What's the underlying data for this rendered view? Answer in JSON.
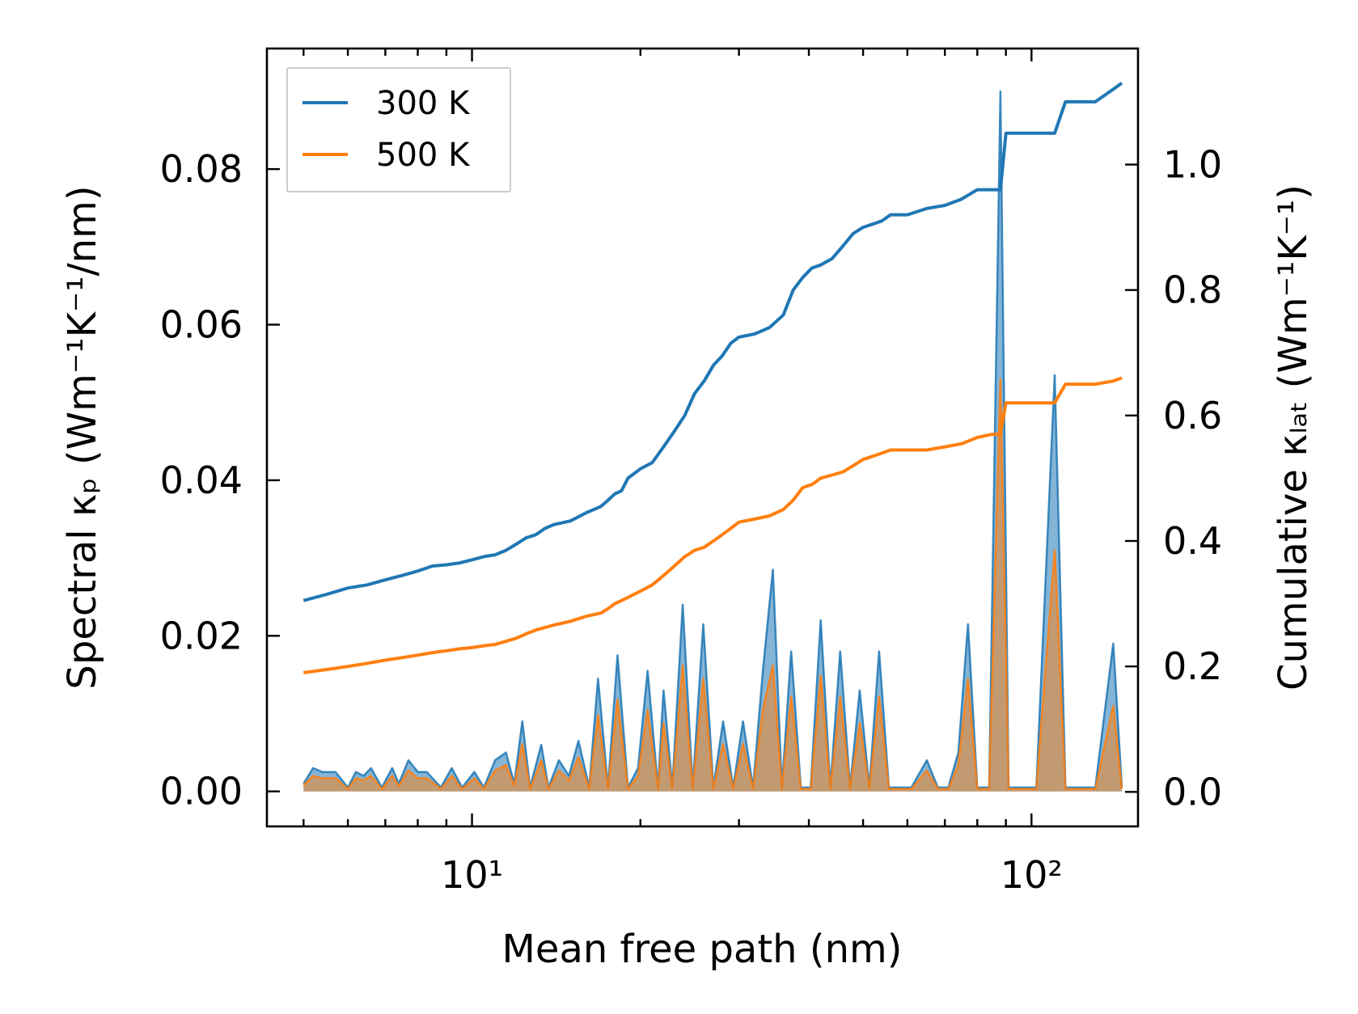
{
  "chart_data": {
    "type": "line",
    "xlabel": "Mean free path (nm)",
    "ylabel_left": "Spectral κₚ (Wm⁻¹K⁻¹/nm)",
    "ylabel_right": "Cumulative κₗₐₜ (Wm⁻¹K⁻¹)",
    "xscale": "log",
    "xlim": [
      4.3,
      155
    ],
    "ylim_left": [
      -0.0045,
      0.0955
    ],
    "ylim_right": [
      -0.055,
      1.185
    ],
    "x_ticks": [
      {
        "value": 10,
        "label": "10¹"
      },
      {
        "value": 100,
        "label": "10²"
      }
    ],
    "y_ticks_left": [
      {
        "value": 0.0,
        "label": "0.00"
      },
      {
        "value": 0.02,
        "label": "0.02"
      },
      {
        "value": 0.04,
        "label": "0.04"
      },
      {
        "value": 0.06,
        "label": "0.06"
      },
      {
        "value": 0.08,
        "label": "0.08"
      }
    ],
    "y_ticks_right": [
      {
        "value": 0.0,
        "label": "0.0"
      },
      {
        "value": 0.2,
        "label": "0.2"
      },
      {
        "value": 0.4,
        "label": "0.4"
      },
      {
        "value": 0.6,
        "label": "0.6"
      },
      {
        "value": 0.8,
        "label": "0.8"
      },
      {
        "value": 1.0,
        "label": "1.0"
      }
    ],
    "legend": {
      "position": "top-left",
      "entries": [
        "300 K",
        "500 K"
      ]
    },
    "colors": {
      "300K": "#1f77b4",
      "500K": "#ff7f0e"
    },
    "spectral": {
      "x": [
        5.0,
        5.2,
        5.4,
        5.7,
        6.0,
        6.2,
        6.4,
        6.6,
        6.9,
        7.2,
        7.4,
        7.7,
        8.0,
        8.3,
        8.8,
        9.2,
        9.6,
        10.1,
        10.5,
        11.0,
        11.5,
        11.9,
        12.3,
        12.7,
        13.3,
        13.7,
        14.3,
        14.9,
        15.5,
        16.2,
        16.8,
        17.5,
        18.2,
        19.0,
        19.8,
        20.6,
        21.5,
        22.0,
        22.8,
        23.8,
        24.8,
        25.9,
        27.0,
        28.1,
        29.3,
        30.5,
        31.8,
        33.1,
        34.5,
        35.8,
        37.2,
        38.7,
        40.3,
        42.0,
        43.7,
        45.5,
        47.4,
        49.3,
        51.3,
        53.4,
        55.6,
        57.8,
        61.0,
        65.0,
        68.0,
        71.0,
        74.0,
        77.0,
        80.0,
        84.0,
        88.0,
        91.0,
        93.0,
        97.0,
        102.0,
        110.0,
        115.0,
        118.0,
        122.0,
        130.0,
        140.0,
        145.0
      ],
      "series": [
        {
          "name": "300 K",
          "values": [
            0.001,
            0.003,
            0.0025,
            0.0025,
            0.0005,
            0.0025,
            0.002,
            0.003,
            0.0005,
            0.003,
            0.001,
            0.004,
            0.0025,
            0.0025,
            0.0005,
            0.003,
            0.0005,
            0.0025,
            0.0005,
            0.004,
            0.005,
            0.001,
            0.009,
            0.0005,
            0.006,
            0.0005,
            0.004,
            0.002,
            0.0065,
            0.0005,
            0.0145,
            0.0005,
            0.0175,
            0.0005,
            0.003,
            0.0155,
            0.0005,
            0.013,
            0.0005,
            0.024,
            0.0005,
            0.0215,
            0.0005,
            0.009,
            0.0005,
            0.009,
            0.0005,
            0.0155,
            0.0285,
            0.0005,
            0.018,
            0.0005,
            0.0005,
            0.022,
            0.0005,
            0.018,
            0.0005,
            0.013,
            0.0005,
            0.018,
            0.0005,
            0.0005,
            0.0005,
            0.004,
            0.0005,
            0.0005,
            0.005,
            0.0215,
            0.0005,
            0.0005,
            0.09,
            0.0005,
            0.0005,
            0.0005,
            0.0005,
            0.0535,
            0.0005,
            0.0005,
            0.0005,
            0.0005,
            0.019,
            0.0005
          ]
        },
        {
          "name": "500 K",
          "values": [
            0.0008,
            0.002,
            0.0017,
            0.0017,
            0.0003,
            0.0017,
            0.0014,
            0.002,
            0.0003,
            0.002,
            0.0007,
            0.0027,
            0.0017,
            0.0017,
            0.0003,
            0.002,
            0.0003,
            0.0017,
            0.0003,
            0.0027,
            0.0034,
            0.0007,
            0.0061,
            0.0003,
            0.004,
            0.0003,
            0.0027,
            0.0014,
            0.0044,
            0.0003,
            0.0098,
            0.0003,
            0.0118,
            0.0003,
            0.002,
            0.0105,
            0.0003,
            0.0088,
            0.0003,
            0.0162,
            0.0003,
            0.0145,
            0.0003,
            0.0061,
            0.0003,
            0.0061,
            0.0003,
            0.0105,
            0.0162,
            0.0003,
            0.0122,
            0.0003,
            0.0003,
            0.0149,
            0.0003,
            0.0122,
            0.0003,
            0.0088,
            0.0003,
            0.0122,
            0.0003,
            0.0003,
            0.0003,
            0.0027,
            0.0003,
            0.0003,
            0.0034,
            0.0145,
            0.0003,
            0.0003,
            0.053,
            0.0003,
            0.0003,
            0.0003,
            0.0003,
            0.031,
            0.0003,
            0.0003,
            0.0003,
            0.0003,
            0.011,
            0.0003
          ]
        }
      ]
    },
    "cumulative": {
      "x": [
        5.0,
        5.5,
        6.0,
        6.5,
        7.0,
        7.5,
        8.0,
        8.5,
        9.0,
        9.5,
        10.0,
        10.5,
        11.0,
        11.5,
        12.0,
        12.5,
        13.0,
        13.5,
        14.0,
        15.0,
        16.0,
        17.0,
        17.5,
        18.0,
        18.5,
        19.0,
        20.0,
        21.0,
        22.0,
        23.0,
        24.0,
        25.0,
        26.0,
        27.0,
        28.0,
        29.0,
        30.0,
        32.0,
        34.0,
        36.0,
        37.5,
        39.0,
        40.5,
        42.0,
        44.0,
        46.0,
        48.0,
        50.0,
        52.0,
        54.0,
        56.0,
        60.0,
        65.0,
        70.0,
        75.0,
        80.0,
        85.0,
        88.0,
        90.0,
        92.0,
        95.0,
        100.0,
        110.0,
        115.0,
        118.0,
        120.0,
        130.0,
        140.0,
        145.0
      ],
      "series": [
        {
          "name": "300 K",
          "values": [
            0.305,
            0.315,
            0.325,
            0.33,
            0.338,
            0.345,
            0.352,
            0.36,
            0.362,
            0.365,
            0.37,
            0.375,
            0.378,
            0.385,
            0.395,
            0.405,
            0.41,
            0.42,
            0.426,
            0.432,
            0.445,
            0.455,
            0.465,
            0.475,
            0.48,
            0.5,
            0.515,
            0.525,
            0.55,
            0.575,
            0.6,
            0.635,
            0.655,
            0.68,
            0.695,
            0.715,
            0.725,
            0.73,
            0.74,
            0.76,
            0.8,
            0.82,
            0.835,
            0.84,
            0.85,
            0.87,
            0.89,
            0.9,
            0.905,
            0.91,
            0.92,
            0.92,
            0.93,
            0.935,
            0.945,
            0.96,
            0.96,
            0.96,
            1.05,
            1.05,
            1.05,
            1.05,
            1.05,
            1.1,
            1.1,
            1.1,
            1.1,
            1.12,
            1.13
          ]
        },
        {
          "name": "500 K",
          "values": [
            0.19,
            0.195,
            0.2,
            0.205,
            0.21,
            0.214,
            0.218,
            0.222,
            0.225,
            0.228,
            0.23,
            0.233,
            0.235,
            0.24,
            0.245,
            0.252,
            0.258,
            0.262,
            0.266,
            0.272,
            0.28,
            0.285,
            0.292,
            0.3,
            0.305,
            0.31,
            0.32,
            0.33,
            0.345,
            0.36,
            0.375,
            0.385,
            0.39,
            0.4,
            0.41,
            0.42,
            0.43,
            0.435,
            0.44,
            0.45,
            0.465,
            0.485,
            0.49,
            0.5,
            0.505,
            0.51,
            0.52,
            0.53,
            0.535,
            0.54,
            0.545,
            0.545,
            0.545,
            0.55,
            0.555,
            0.565,
            0.57,
            0.57,
            0.62,
            0.62,
            0.62,
            0.62,
            0.62,
            0.65,
            0.65,
            0.65,
            0.65,
            0.655,
            0.66
          ]
        }
      ]
    }
  }
}
